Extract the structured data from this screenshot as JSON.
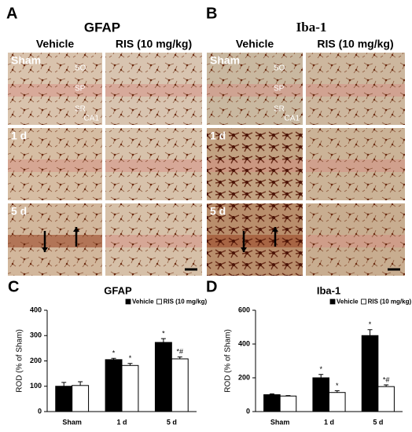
{
  "figure": {
    "panel_a": {
      "letter": "A",
      "title": "GFAP",
      "columns": [
        "Vehicle",
        "RIS (10 mg/kg)"
      ],
      "rows": [
        "Sham",
        "1 d",
        "5 d"
      ],
      "layers": [
        "SO",
        "SP",
        "SR"
      ],
      "region": "CA1"
    },
    "panel_b": {
      "letter": "B",
      "title": "Iba-1",
      "columns": [
        "Vehicle",
        "RIS (10 mg/kg)"
      ],
      "rows": [
        "Sham",
        "1 d",
        "5 d"
      ],
      "layers": [
        "SO",
        "SP",
        "SR"
      ],
      "region": "CA1"
    }
  },
  "chart_data": [
    {
      "type": "bar",
      "panel_label": "C",
      "title": "GFAP",
      "ylabel": "ROD (% of Sham)",
      "categories": [
        "Sham",
        "1 d",
        "5 d"
      ],
      "series": [
        {
          "name": "Vehicle",
          "color": "#000000",
          "values": [
            100,
            205,
            273
          ],
          "errors": [
            15,
            5,
            15
          ],
          "annotations": [
            null,
            "*",
            "*"
          ]
        },
        {
          "name": "RIS (10 mg/kg)",
          "color": "#ffffff",
          "values": [
            103,
            182,
            208
          ],
          "errors": [
            15,
            8,
            8
          ],
          "annotations": [
            null,
            "*",
            "*#"
          ]
        }
      ],
      "ylim": [
        0,
        400
      ],
      "yticks": [
        0,
        100,
        200,
        300,
        400
      ]
    },
    {
      "type": "bar",
      "panel_label": "D",
      "title": "Iba-1",
      "ylabel": "ROD (% of Sham)",
      "categories": [
        "Sham",
        "1 d",
        "5 d"
      ],
      "series": [
        {
          "name": "Vehicle",
          "color": "#000000",
          "values": [
            100,
            200,
            450
          ],
          "errors": [
            5,
            20,
            35
          ],
          "annotations": [
            null,
            "*",
            "*"
          ]
        },
        {
          "name": "RIS (10 mg/kg)",
          "color": "#ffffff",
          "values": [
            92,
            113,
            148
          ],
          "errors": [
            3,
            10,
            10
          ],
          "annotations": [
            null,
            "*",
            "*#"
          ]
        }
      ],
      "ylim": [
        0,
        600
      ],
      "yticks": [
        0,
        200,
        400,
        600
      ]
    }
  ]
}
